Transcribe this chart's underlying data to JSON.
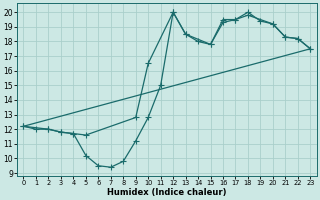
{
  "xlabel": "Humidex (Indice chaleur)",
  "bg_color": "#cce8e4",
  "line_color": "#1a6b6b",
  "grid_color": "#aacfcb",
  "xlim": [
    -0.5,
    23.5
  ],
  "ylim": [
    8.8,
    20.6
  ],
  "yticks": [
    9,
    10,
    11,
    12,
    13,
    14,
    15,
    16,
    17,
    18,
    19,
    20
  ],
  "xticks": [
    0,
    1,
    2,
    3,
    4,
    5,
    6,
    7,
    8,
    9,
    10,
    11,
    12,
    13,
    14,
    15,
    16,
    17,
    18,
    19,
    20,
    21,
    22,
    23
  ],
  "line1_x": [
    0,
    1,
    2,
    3,
    4,
    5,
    6,
    7,
    8,
    9,
    10,
    11,
    12,
    13,
    14,
    15,
    16,
    17,
    18,
    19,
    20,
    21,
    22,
    23
  ],
  "line1_y": [
    12.2,
    12.0,
    12.0,
    11.8,
    11.7,
    10.2,
    9.5,
    9.4,
    9.8,
    11.2,
    12.8,
    15.0,
    20.0,
    18.5,
    18.0,
    17.8,
    19.5,
    19.5,
    20.0,
    19.4,
    19.2,
    18.3,
    18.2,
    17.5
  ],
  "line2_x": [
    0,
    2,
    3,
    4,
    5,
    9,
    10,
    12,
    13,
    15,
    16,
    17,
    18,
    20,
    21,
    22,
    23
  ],
  "line2_y": [
    12.2,
    12.0,
    11.8,
    11.7,
    11.6,
    12.8,
    16.5,
    20.0,
    18.5,
    17.8,
    19.3,
    19.5,
    19.8,
    19.2,
    18.3,
    18.2,
    17.5
  ],
  "line3_x": [
    0,
    23
  ],
  "line3_y": [
    12.2,
    17.5
  ],
  "marker_size": 2.5,
  "lw": 0.9
}
